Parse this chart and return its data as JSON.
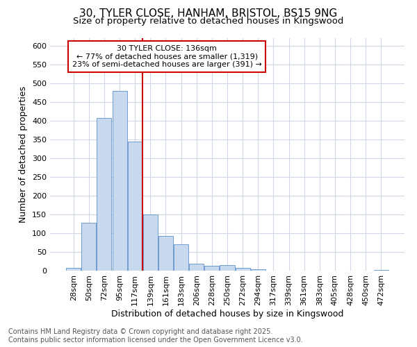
{
  "title1": "30, TYLER CLOSE, HANHAM, BRISTOL, BS15 9NG",
  "title2": "Size of property relative to detached houses in Kingswood",
  "xlabel": "Distribution of detached houses by size in Kingswood",
  "ylabel": "Number of detached properties",
  "bar_color": "#c8d8ee",
  "bar_edge_color": "#5b8fc9",
  "background_color": "#ffffff",
  "fig_background": "#ffffff",
  "categories": [
    "28sqm",
    "50sqm",
    "72sqm",
    "95sqm",
    "117sqm",
    "139sqm",
    "161sqm",
    "183sqm",
    "206sqm",
    "228sqm",
    "250sqm",
    "272sqm",
    "294sqm",
    "317sqm",
    "339sqm",
    "361sqm",
    "383sqm",
    "405sqm",
    "428sqm",
    "450sqm",
    "472sqm"
  ],
  "values": [
    8,
    128,
    408,
    480,
    345,
    150,
    93,
    70,
    18,
    13,
    15,
    7,
    3,
    0,
    0,
    0,
    0,
    0,
    0,
    0,
    2
  ],
  "vline_index": 5,
  "vline_color": "#cc0000",
  "annotation_line1": "30 TYLER CLOSE: 136sqm",
  "annotation_line2": "← 77% of detached houses are smaller (1,319)",
  "annotation_line3": "23% of semi-detached houses are larger (391) →",
  "annotation_box_color": "#cc0000",
  "annotation_fill": "#ffffff",
  "ylim": [
    0,
    620
  ],
  "yticks": [
    0,
    50,
    100,
    150,
    200,
    250,
    300,
    350,
    400,
    450,
    500,
    550,
    600
  ],
  "footnote": "Contains HM Land Registry data © Crown copyright and database right 2025.\nContains public sector information licensed under the Open Government Licence v3.0.",
  "grid_color": "#d0d8e8",
  "title_fontsize": 11,
  "subtitle_fontsize": 9.5,
  "tick_fontsize": 8,
  "ylabel_fontsize": 9,
  "xlabel_fontsize": 9,
  "footnote_fontsize": 7,
  "footnote_color": "#555555"
}
